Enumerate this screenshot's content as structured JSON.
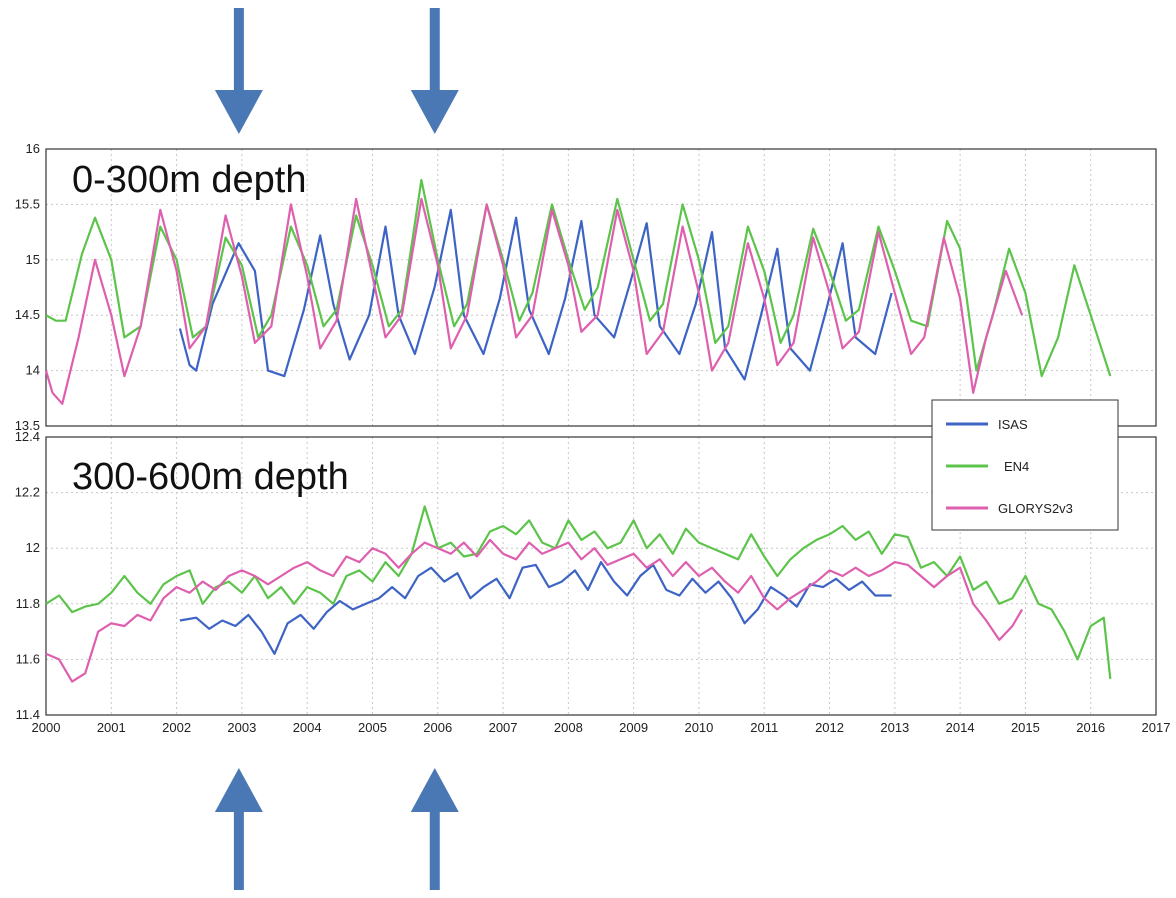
{
  "colors": {
    "arrow": "#4a78b4",
    "isas": "#3d63c4",
    "en4": "#5cc44a",
    "glorys": "#de5fae",
    "grid": "#c8c8c8"
  },
  "legend": {
    "entries": [
      "ISAS",
      "EN4",
      "GLORYS2v3"
    ],
    "placement": "right, between panels"
  },
  "chart_data": [
    {
      "type": "line",
      "panel_label": "0-300m depth",
      "xlim": [
        2000,
        2017
      ],
      "ylim": [
        13.5,
        16
      ],
      "x_ticks": [
        "2000",
        "2001",
        "2002",
        "2003",
        "2004",
        "2005",
        "2006",
        "2007",
        "2008",
        "2009",
        "2010",
        "2011",
        "2012",
        "2013",
        "2014",
        "2015",
        "2016",
        "2017"
      ],
      "y_ticks": [
        "13.5",
        "14",
        "14.5",
        "15",
        "15.5",
        "16"
      ],
      "grid": true,
      "series": [
        {
          "name": "ISAS",
          "x": [
            2002.05,
            2002.2,
            2002.3,
            2002.55,
            2002.95,
            2003.2,
            2003.4,
            2003.65,
            2003.95,
            2004.2,
            2004.4,
            2004.65,
            2004.95,
            2005.2,
            2005.4,
            2005.65,
            2005.95,
            2006.2,
            2006.4,
            2006.7,
            2006.95,
            2007.2,
            2007.4,
            2007.7,
            2007.95,
            2008.2,
            2008.4,
            2008.7,
            2008.95,
            2009.2,
            2009.4,
            2009.7,
            2009.95,
            2010.2,
            2010.4,
            2010.7,
            2010.95,
            2011.2,
            2011.4,
            2011.7,
            2011.95,
            2012.2,
            2012.4,
            2012.7,
            2012.95
          ],
          "y": [
            14.38,
            14.05,
            14.0,
            14.6,
            15.15,
            14.9,
            14.0,
            13.95,
            14.55,
            15.22,
            14.6,
            14.1,
            14.5,
            15.3,
            14.5,
            14.15,
            14.75,
            15.45,
            14.5,
            14.15,
            14.65,
            15.38,
            14.55,
            14.15,
            14.65,
            15.35,
            14.5,
            14.3,
            14.8,
            15.33,
            14.4,
            14.15,
            14.6,
            15.25,
            14.2,
            13.92,
            14.5,
            15.1,
            14.2,
            14.0,
            14.55,
            15.15,
            14.3,
            14.15,
            14.7
          ]
        },
        {
          "name": "EN4",
          "x": [
            2000.0,
            2000.15,
            2000.3,
            2000.55,
            2000.75,
            2001.0,
            2001.2,
            2001.45,
            2001.75,
            2002.0,
            2002.25,
            2002.45,
            2002.75,
            2003.0,
            2003.25,
            2003.45,
            2003.75,
            2004.0,
            2004.25,
            2004.45,
            2004.75,
            2005.0,
            2005.25,
            2005.45,
            2005.75,
            2006.0,
            2006.25,
            2006.45,
            2006.75,
            2007.0,
            2007.25,
            2007.45,
            2007.75,
            2008.0,
            2008.25,
            2008.45,
            2008.75,
            2009.0,
            2009.25,
            2009.45,
            2009.75,
            2010.0,
            2010.25,
            2010.45,
            2010.75,
            2011.0,
            2011.25,
            2011.45,
            2011.75,
            2012.0,
            2012.25,
            2012.45,
            2012.75,
            2013.0,
            2013.25,
            2013.5,
            2013.8,
            2014.0,
            2014.25,
            2014.5,
            2014.75,
            2015.0,
            2015.25,
            2015.5,
            2015.75,
            2016.0,
            2016.3
          ],
          "y": [
            14.5,
            14.45,
            14.45,
            15.05,
            15.38,
            15.0,
            14.3,
            14.4,
            15.3,
            15.0,
            14.3,
            14.4,
            15.2,
            14.95,
            14.3,
            14.5,
            15.3,
            14.95,
            14.4,
            14.55,
            15.4,
            14.95,
            14.4,
            14.55,
            15.72,
            15.0,
            14.4,
            14.6,
            15.5,
            15.0,
            14.45,
            14.7,
            15.5,
            15.0,
            14.55,
            14.75,
            15.55,
            15.0,
            14.45,
            14.6,
            15.5,
            15.0,
            14.25,
            14.4,
            15.3,
            14.9,
            14.25,
            14.5,
            15.28,
            14.9,
            14.45,
            14.55,
            15.3,
            14.9,
            14.45,
            14.4,
            15.35,
            15.1,
            14.0,
            14.5,
            15.1,
            14.7,
            13.95,
            14.3,
            14.95,
            14.5,
            13.95
          ]
        },
        {
          "name": "GLORYS2v3",
          "x": [
            2000.0,
            2000.1,
            2000.25,
            2000.5,
            2000.75,
            2001.0,
            2001.2,
            2001.45,
            2001.75,
            2002.0,
            2002.2,
            2002.45,
            2002.75,
            2003.0,
            2003.2,
            2003.45,
            2003.75,
            2004.0,
            2004.2,
            2004.45,
            2004.75,
            2005.0,
            2005.2,
            2005.45,
            2005.75,
            2006.0,
            2006.2,
            2006.45,
            2006.75,
            2007.0,
            2007.2,
            2007.45,
            2007.75,
            2008.0,
            2008.2,
            2008.45,
            2008.75,
            2009.0,
            2009.2,
            2009.45,
            2009.75,
            2010.0,
            2010.2,
            2010.45,
            2010.75,
            2011.0,
            2011.2,
            2011.45,
            2011.75,
            2012.0,
            2012.2,
            2012.45,
            2012.75,
            2013.0,
            2013.25,
            2013.45,
            2013.75,
            2014.0,
            2014.2,
            2014.4,
            2014.7,
            2014.95
          ],
          "y": [
            14.0,
            13.8,
            13.7,
            14.3,
            15.0,
            14.5,
            13.95,
            14.4,
            15.45,
            14.9,
            14.2,
            14.4,
            15.4,
            14.85,
            14.25,
            14.4,
            15.5,
            14.85,
            14.2,
            14.45,
            15.55,
            14.85,
            14.3,
            14.5,
            15.55,
            14.95,
            14.2,
            14.5,
            15.5,
            14.95,
            14.3,
            14.5,
            15.45,
            14.95,
            14.35,
            14.5,
            15.45,
            14.9,
            14.15,
            14.35,
            15.3,
            14.7,
            14.0,
            14.25,
            15.15,
            14.65,
            14.05,
            14.25,
            15.2,
            14.7,
            14.2,
            14.35,
            15.25,
            14.7,
            14.15,
            14.3,
            15.2,
            14.65,
            13.8,
            14.3,
            14.9,
            14.5
          ]
        }
      ]
    },
    {
      "type": "line",
      "panel_label": "300-600m depth",
      "xlim": [
        2000,
        2017
      ],
      "ylim": [
        11.4,
        12.4
      ],
      "x_ticks": [
        "2000",
        "2001",
        "2002",
        "2003",
        "2004",
        "2005",
        "2006",
        "2007",
        "2008",
        "2009",
        "2010",
        "2011",
        "2012",
        "2013",
        "2014",
        "2015",
        "2016",
        "2017"
      ],
      "y_ticks": [
        "11.4",
        "11.6",
        "11.8",
        "12",
        "12.2",
        "12.4"
      ],
      "grid": true,
      "series": [
        {
          "name": "ISAS",
          "x": [
            2002.05,
            2002.3,
            2002.5,
            2002.7,
            2002.9,
            2003.1,
            2003.3,
            2003.5,
            2003.7,
            2003.9,
            2004.1,
            2004.3,
            2004.5,
            2004.7,
            2004.9,
            2005.1,
            2005.3,
            2005.5,
            2005.7,
            2005.9,
            2006.1,
            2006.3,
            2006.5,
            2006.7,
            2006.9,
            2007.1,
            2007.3,
            2007.5,
            2007.7,
            2007.9,
            2008.1,
            2008.3,
            2008.5,
            2008.7,
            2008.9,
            2009.1,
            2009.3,
            2009.5,
            2009.7,
            2009.9,
            2010.1,
            2010.3,
            2010.5,
            2010.7,
            2010.9,
            2011.1,
            2011.3,
            2011.5,
            2011.7,
            2011.9,
            2012.1,
            2012.3,
            2012.5,
            2012.7,
            2012.95
          ],
          "y": [
            11.74,
            11.75,
            11.71,
            11.74,
            11.72,
            11.76,
            11.7,
            11.62,
            11.73,
            11.76,
            11.71,
            11.77,
            11.81,
            11.78,
            11.8,
            11.82,
            11.86,
            11.82,
            11.9,
            11.93,
            11.88,
            11.91,
            11.82,
            11.86,
            11.89,
            11.82,
            11.93,
            11.94,
            11.86,
            11.88,
            11.92,
            11.85,
            11.95,
            11.88,
            11.83,
            11.9,
            11.94,
            11.85,
            11.83,
            11.89,
            11.84,
            11.88,
            11.82,
            11.73,
            11.78,
            11.86,
            11.83,
            11.79,
            11.87,
            11.86,
            11.89,
            11.85,
            11.88,
            11.83,
            11.83
          ]
        },
        {
          "name": "EN4",
          "x": [
            2000.0,
            2000.2,
            2000.4,
            2000.6,
            2000.8,
            2001.0,
            2001.2,
            2001.4,
            2001.6,
            2001.8,
            2002.0,
            2002.2,
            2002.4,
            2002.6,
            2002.8,
            2003.0,
            2003.2,
            2003.4,
            2003.6,
            2003.8,
            2004.0,
            2004.2,
            2004.4,
            2004.6,
            2004.8,
            2005.0,
            2005.2,
            2005.4,
            2005.6,
            2005.8,
            2006.0,
            2006.2,
            2006.4,
            2006.6,
            2006.8,
            2007.0,
            2007.2,
            2007.4,
            2007.6,
            2007.8,
            2008.0,
            2008.2,
            2008.4,
            2008.6,
            2008.8,
            2009.0,
            2009.2,
            2009.4,
            2009.6,
            2009.8,
            2010.0,
            2010.2,
            2010.4,
            2010.6,
            2010.8,
            2011.0,
            2011.2,
            2011.4,
            2011.6,
            2011.8,
            2012.0,
            2012.2,
            2012.4,
            2012.6,
            2012.8,
            2013.0,
            2013.2,
            2013.4,
            2013.6,
            2013.8,
            2014.0,
            2014.2,
            2014.4,
            2014.6,
            2014.8,
            2015.0,
            2015.2,
            2015.4,
            2015.6,
            2015.8,
            2016.0,
            2016.2,
            2016.3
          ],
          "y": [
            11.8,
            11.83,
            11.77,
            11.79,
            11.8,
            11.84,
            11.9,
            11.84,
            11.8,
            11.87,
            11.9,
            11.92,
            11.8,
            11.86,
            11.88,
            11.84,
            11.9,
            11.82,
            11.86,
            11.8,
            11.86,
            11.84,
            11.8,
            11.9,
            11.92,
            11.88,
            11.95,
            11.9,
            11.98,
            12.15,
            12.0,
            12.02,
            11.97,
            11.98,
            12.06,
            12.08,
            12.05,
            12.1,
            12.02,
            12.0,
            12.1,
            12.03,
            12.06,
            12.0,
            12.02,
            12.1,
            12.0,
            12.05,
            11.98,
            12.07,
            12.02,
            12.0,
            11.98,
            11.96,
            12.05,
            11.97,
            11.9,
            11.96,
            12.0,
            12.03,
            12.05,
            12.08,
            12.03,
            12.06,
            11.98,
            12.05,
            12.04,
            11.93,
            11.95,
            11.9,
            11.97,
            11.85,
            11.88,
            11.8,
            11.82,
            11.9,
            11.8,
            11.78,
            11.7,
            11.6,
            11.72,
            11.75,
            11.53
          ]
        },
        {
          "name": "GLORYS2v3",
          "x": [
            2000.0,
            2000.2,
            2000.4,
            2000.6,
            2000.8,
            2001.0,
            2001.2,
            2001.4,
            2001.6,
            2001.8,
            2002.0,
            2002.2,
            2002.4,
            2002.6,
            2002.8,
            2003.0,
            2003.2,
            2003.4,
            2003.6,
            2003.8,
            2004.0,
            2004.2,
            2004.4,
            2004.6,
            2004.8,
            2005.0,
            2005.2,
            2005.4,
            2005.6,
            2005.8,
            2006.0,
            2006.2,
            2006.4,
            2006.6,
            2006.8,
            2007.0,
            2007.2,
            2007.4,
            2007.6,
            2007.8,
            2008.0,
            2008.2,
            2008.4,
            2008.6,
            2008.8,
            2009.0,
            2009.2,
            2009.4,
            2009.6,
            2009.8,
            2010.0,
            2010.2,
            2010.4,
            2010.6,
            2010.8,
            2011.0,
            2011.2,
            2011.4,
            2011.6,
            2011.8,
            2012.0,
            2012.2,
            2012.4,
            2012.6,
            2012.8,
            2013.0,
            2013.2,
            2013.4,
            2013.6,
            2013.8,
            2014.0,
            2014.2,
            2014.4,
            2014.6,
            2014.8,
            2014.95
          ],
          "y": [
            11.62,
            11.6,
            11.52,
            11.55,
            11.7,
            11.73,
            11.72,
            11.76,
            11.74,
            11.82,
            11.86,
            11.84,
            11.88,
            11.85,
            11.9,
            11.92,
            11.9,
            11.87,
            11.9,
            11.93,
            11.95,
            11.92,
            11.9,
            11.97,
            11.95,
            12.0,
            11.98,
            11.93,
            11.98,
            12.02,
            12.0,
            11.98,
            12.02,
            11.97,
            12.03,
            11.98,
            11.96,
            12.02,
            11.98,
            12.0,
            12.02,
            11.96,
            12.0,
            11.94,
            11.96,
            11.98,
            11.93,
            11.96,
            11.9,
            11.95,
            11.9,
            11.93,
            11.88,
            11.84,
            11.9,
            11.82,
            11.78,
            11.82,
            11.85,
            11.88,
            11.92,
            11.9,
            11.93,
            11.9,
            11.92,
            11.95,
            11.94,
            11.9,
            11.86,
            11.9,
            11.93,
            11.8,
            11.74,
            11.67,
            11.72,
            11.78
          ]
        }
      ]
    }
  ]
}
